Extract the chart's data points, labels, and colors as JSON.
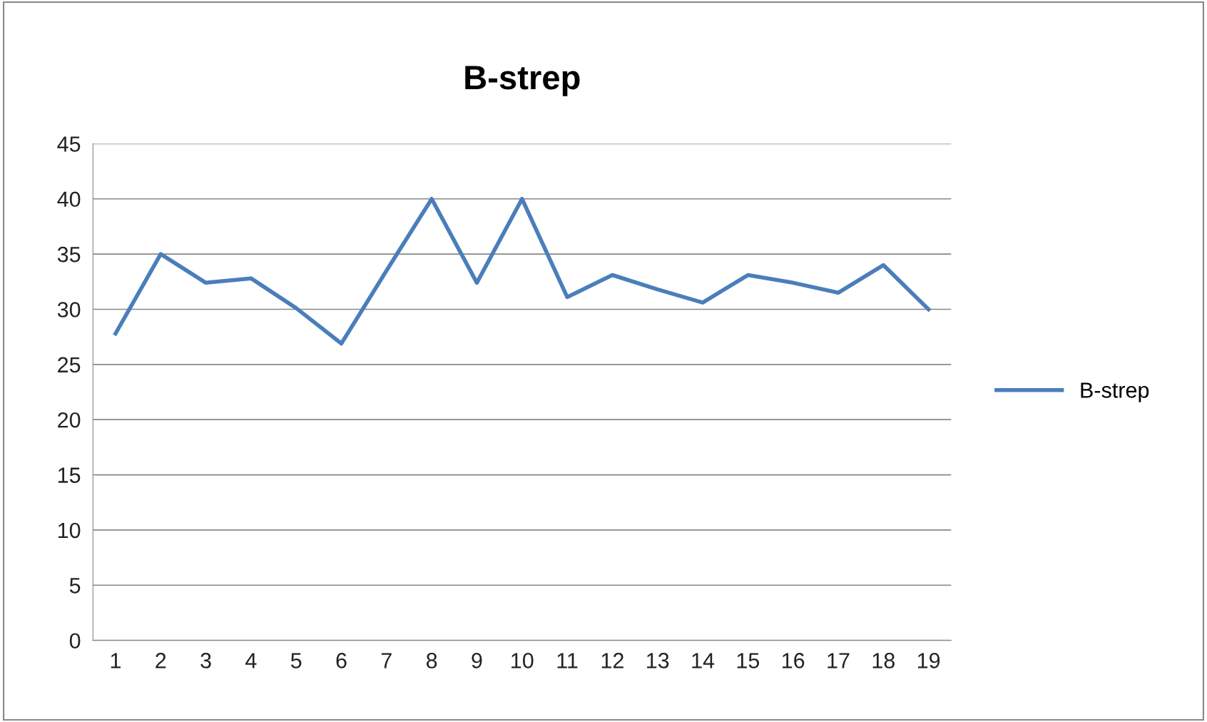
{
  "chart_data": {
    "type": "line",
    "title": "B-strep",
    "categories": [
      "1",
      "2",
      "3",
      "4",
      "5",
      "6",
      "7",
      "8",
      "9",
      "10",
      "11",
      "12",
      "13",
      "14",
      "15",
      "16",
      "17",
      "18",
      "19"
    ],
    "series": [
      {
        "name": "B-strep",
        "color": "#4a7ebb",
        "values": [
          27.8,
          35,
          32.4,
          32.8,
          30.1,
          26.9,
          33.5,
          40,
          32.4,
          40,
          31.1,
          33.1,
          31.8,
          30.6,
          33.1,
          32.4,
          31.5,
          34,
          30
        ]
      }
    ],
    "ylim": [
      0,
      45
    ],
    "yticks": [
      0,
      5,
      10,
      15,
      20,
      25,
      30,
      35,
      40,
      45
    ],
    "grid": "y",
    "legend": "right",
    "marker": "none",
    "line_style": "solid"
  }
}
